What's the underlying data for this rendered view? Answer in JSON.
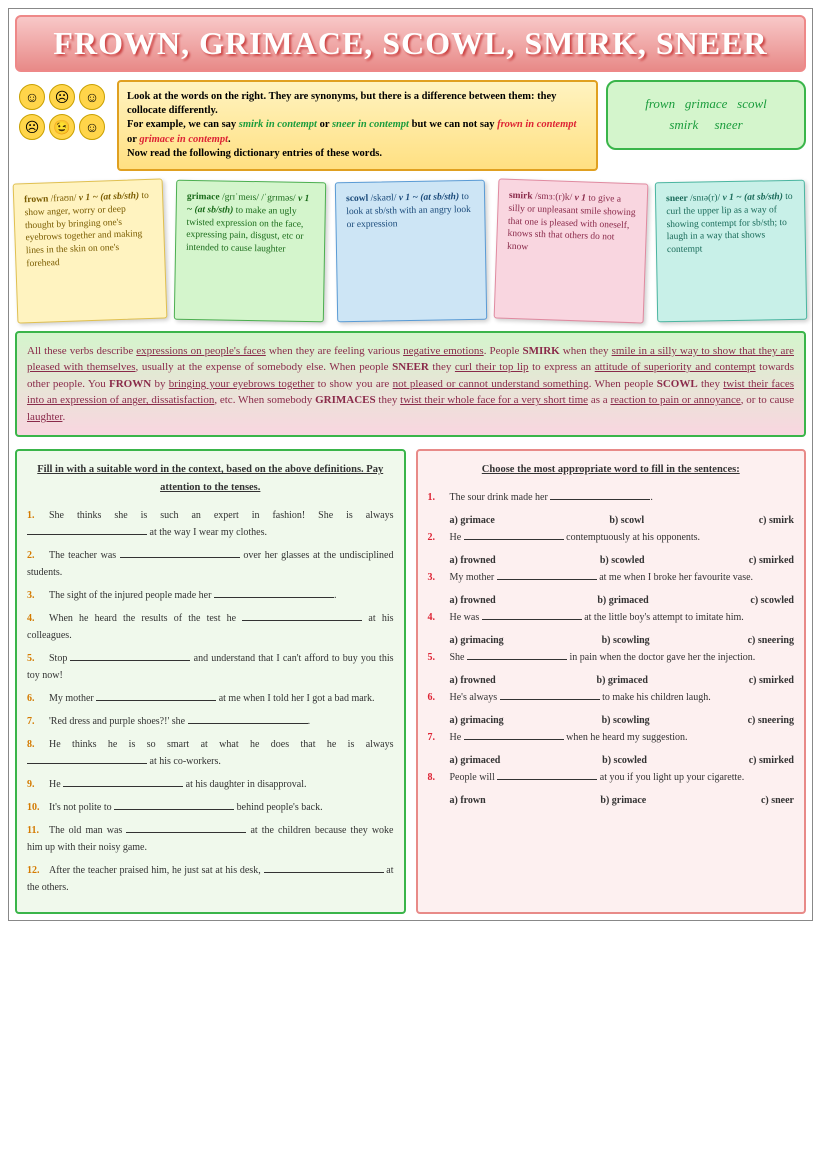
{
  "title": "FROWN, GRIMACE, SCOWL, SMIRK, SNEER",
  "intro": {
    "line1": "Look at the words on the right. They are synonyms, but there is a difference between them: they collocate differently.",
    "line2_pre": "For example, we can say ",
    "line2_g1": "smirk in contempt",
    "line2_or1": " or ",
    "line2_g2": "sneer in contempt",
    "line2_mid": " but we can not say ",
    "line2_r1": "frown in contempt",
    "line2_or2": " or ",
    "line2_r2": "grimace in contempt",
    "line2_end": ".",
    "line3": "Now read the following dictionary entries of these words."
  },
  "wordbox": {
    "w1": "frown",
    "w2": "grimace",
    "w3": "scowl",
    "w4": "smirk",
    "w5": "sneer"
  },
  "cards": {
    "frown": {
      "hw": "frown",
      "ipa": "/fraʊn/",
      "pos": "v 1 ~ (at sb/sth)",
      "def": "to show anger, worry or deep thought by bringing one's eyebrows together and making lines in the skin on one's forehead"
    },
    "grimace": {
      "hw": "grimace",
      "ipa": "/grɪˈmeɪs/ /ˈgrɪməs/",
      "pos": "v 1 ~ (at sb/sth)",
      "def": "to make an ugly twisted expression on the face, expressing pain, disgust, etc or intended to cause laughter"
    },
    "scowl": {
      "hw": "scowl",
      "ipa": "/skaʊl/",
      "pos": "v 1 ~ (at sb/sth)",
      "def": "to look at sb/sth with an angry look or expression"
    },
    "smirk": {
      "hw": "smirk",
      "ipa": "/smɜː(r)k/",
      "pos": "v 1",
      "def": "to give a silly or unpleasant smile showing that one is pleased with oneself, knows sth that others do not know"
    },
    "sneer": {
      "hw": "sneer",
      "ipa": "/snɪə(r)/",
      "pos": "v 1 ~ (at sb/sth)",
      "def": "to curl the upper lip as a way of showing contempt for sb/sth; to laugh in a way that shows contempt"
    }
  },
  "description": "All these verbs describe <span class='u'>expressions on people's faces</span> when they are feeling various <span class='u'>negative emotions</span>. People <span class='b'>SMIRK</span> when they <span class='u'>smile in a silly way to show that they are pleased with themselves</span>, usually at the expense of somebody else. When people <span class='b'>SNEER</span> they <span class='u'>curl their top lip</span> to express an <span class='u'>attitude of superiority and contempt</span> towards other people. You <span class='b'>FROWN</span> by <span class='u'>bringing your eyebrows together</span> to show you are <span class='u'>not pleased or cannot understand something</span>. When people <span class='b'>SCOWL</span> they <span class='u'>twist their faces into an expression of anger, dissatisfaction</span>, etc. When somebody <span class='b'>GRIMACES</span> they <span class='u'>twist their whole face for a very short time</span> as a <span class='u'>reaction to pain or annoyance</span>, or to cause <span class='u'>laughter</span>.",
  "ex1": {
    "head": "Fill in with a suitable word in the context, based on the above definitions. Pay attention to the tenses.",
    "items": [
      "She thinks she is such an expert in fashion! She is always ___ at the way I wear my clothes.",
      "The teacher was ___ over her glasses at the undisciplined students.",
      "The sight of the injured people made her ___.",
      "When he heard the results of the test he ___ at his colleagues.",
      "Stop ___ and understand that I can't afford to buy you this toy now!",
      "My mother ___ at me when I told her I got a bad mark.",
      "'Red dress and purple shoes?!' she ___.",
      "He thinks he is so smart at what he does that he is always ___ at his co-workers.",
      "He ___ at his daughter in disapproval.",
      "It's not polite to ___ behind people's back.",
      "The old man was ___ at the children because they woke him up with their noisy game.",
      "After the teacher praised him, he just sat at his desk, ___ at the others."
    ]
  },
  "ex2": {
    "head": "Choose the most appropriate word to fill in the sentences:",
    "items": [
      {
        "q": "The sour drink made her ___.",
        "a": "a) grimace",
        "b": "b) scowl",
        "c": "c) smirk"
      },
      {
        "q": "He ___ contemptuously at his opponents.",
        "a": "a) frowned",
        "b": "b) scowled",
        "c": "c) smirked"
      },
      {
        "q": "My mother ___ at me when I broke her favourite vase.",
        "a": "a) frowned",
        "b": "b) grimaced",
        "c": "c) scowled"
      },
      {
        "q": "He was ___ at the little boy's attempt to imitate him.",
        "a": "a) grimacing",
        "b": "b) scowling",
        "c": "c) sneering"
      },
      {
        "q": "She ___ in pain when the doctor gave her the injection.",
        "a": "a) frowned",
        "b": "b) grimaced",
        "c": "c) smirked"
      },
      {
        "q": "He's always ___ to make his children laugh.",
        "a": "a) grimacing",
        "b": "b) scowling",
        "c": "c) sneering"
      },
      {
        "q": "He ___ when he heard my suggestion.",
        "a": "a) grimaced",
        "b": "b) scowled",
        "c": "c) smirked"
      },
      {
        "q": "People will ___ at you if you light up your cigarette.",
        "a": "a) frown",
        "b": "b) grimace",
        "c": "c) sneer"
      }
    ]
  }
}
